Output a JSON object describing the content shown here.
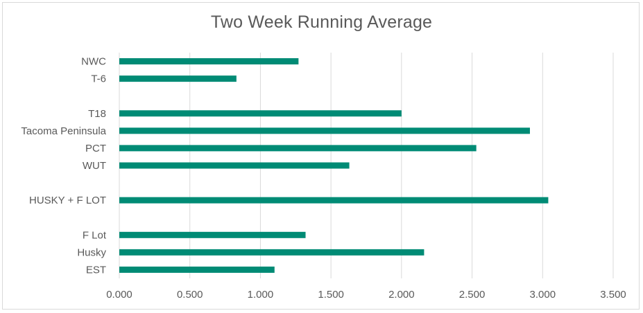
{
  "chart_data": {
    "type": "bar",
    "orientation": "horizontal",
    "title": "Two Week Running Average",
    "xlabel": "",
    "ylabel": "",
    "xlim": [
      0,
      3.5
    ],
    "x_ticks": [
      "0.000",
      "0.500",
      "1.000",
      "1.500",
      "2.000",
      "2.500",
      "3.000",
      "3.500"
    ],
    "categories": [
      "NWC",
      "T-6",
      "",
      "T18",
      "Tacoma Peninsula",
      "PCT",
      "WUT",
      "",
      "HUSKY + F LOT",
      "",
      "F Lot",
      "Husky",
      "EST"
    ],
    "values": [
      1.27,
      0.83,
      null,
      2.0,
      2.91,
      2.53,
      1.63,
      null,
      3.04,
      null,
      1.32,
      2.16,
      1.1
    ],
    "grid": "vertical",
    "legend": "none",
    "bar_color": "#008b75",
    "grid_color": "#d9d9d9"
  }
}
